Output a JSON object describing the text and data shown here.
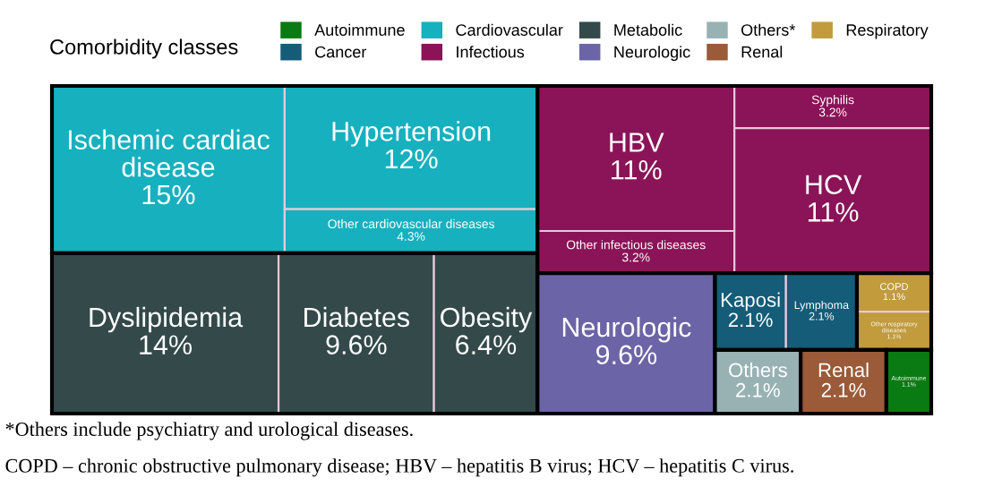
{
  "chart_data": {
    "type": "other",
    "legend_title": "Comorbidity classes",
    "legend": "top",
    "categories": [
      "Ischemic cardiac disease",
      "Hypertension",
      "Other cardiovascular diseases",
      "Dyslipidemia",
      "Diabetes",
      "Obesity",
      "HBV",
      "Other infectious diseases",
      "Syphilis",
      "HCV",
      "Neurologic",
      "Kaposi",
      "Lymphoma",
      "COPD",
      "Other respiratory diseases",
      "Others",
      "Renal",
      "Autoimmune"
    ],
    "series": [
      {
        "name": "Autoimmune",
        "color": "#0a7a12",
        "values": [
          null,
          null,
          null,
          null,
          null,
          null,
          null,
          null,
          null,
          null,
          null,
          null,
          null,
          null,
          null,
          null,
          null,
          1.1
        ],
        "value_labels": [
          null,
          null,
          null,
          null,
          null,
          null,
          null,
          null,
          null,
          null,
          null,
          null,
          null,
          null,
          null,
          null,
          null,
          "1.1%"
        ]
      },
      {
        "name": "Cancer",
        "color": "#145c78",
        "values": [
          null,
          null,
          null,
          null,
          null,
          null,
          null,
          null,
          null,
          null,
          null,
          2.1,
          2.1,
          null,
          null,
          null,
          null,
          null
        ],
        "value_labels": [
          null,
          null,
          null,
          null,
          null,
          null,
          null,
          null,
          null,
          null,
          null,
          "2.1%",
          "2.1%",
          null,
          null,
          null,
          null,
          null
        ]
      },
      {
        "name": "Cardiovascular",
        "color": "#17b0bf",
        "values": [
          15,
          12,
          4.3,
          null,
          null,
          null,
          null,
          null,
          null,
          null,
          null,
          null,
          null,
          null,
          null,
          null,
          null,
          null
        ],
        "value_labels": [
          "15%",
          "12%",
          "4.3%",
          null,
          null,
          null,
          null,
          null,
          null,
          null,
          null,
          null,
          null,
          null,
          null,
          null,
          null,
          null
        ]
      },
      {
        "name": "Infectious",
        "color": "#8a1457",
        "values": [
          null,
          null,
          null,
          null,
          null,
          null,
          11,
          3.2,
          3.2,
          11,
          null,
          null,
          null,
          null,
          null,
          null,
          null,
          null
        ],
        "value_labels": [
          null,
          null,
          null,
          null,
          null,
          null,
          "11%",
          "3.2%",
          "3.2%",
          "11%",
          null,
          null,
          null,
          null,
          null,
          null,
          null,
          null
        ]
      },
      {
        "name": "Metabolic",
        "color": "#33494a",
        "values": [
          null,
          null,
          null,
          14,
          9.6,
          6.4,
          null,
          null,
          null,
          null,
          null,
          null,
          null,
          null,
          null,
          null,
          null,
          null
        ],
        "value_labels": [
          null,
          null,
          null,
          "14%",
          "9.6%",
          "6.4%",
          null,
          null,
          null,
          null,
          null,
          null,
          null,
          null,
          null,
          null,
          null,
          null
        ]
      },
      {
        "name": "Neurologic",
        "color": "#6b64a6",
        "values": [
          null,
          null,
          null,
          null,
          null,
          null,
          null,
          null,
          null,
          null,
          9.6,
          null,
          null,
          null,
          null,
          null,
          null,
          null
        ],
        "value_labels": [
          null,
          null,
          null,
          null,
          null,
          null,
          null,
          null,
          null,
          null,
          "9.6%",
          null,
          null,
          null,
          null,
          null,
          null,
          null
        ]
      },
      {
        "name": "Others*",
        "color": "#98b2b4",
        "values": [
          null,
          null,
          null,
          null,
          null,
          null,
          null,
          null,
          null,
          null,
          null,
          null,
          null,
          null,
          null,
          2.1,
          null,
          null
        ],
        "value_labels": [
          null,
          null,
          null,
          null,
          null,
          null,
          null,
          null,
          null,
          null,
          null,
          null,
          null,
          null,
          null,
          "2.1%",
          null,
          null
        ]
      },
      {
        "name": "Renal",
        "color": "#9b5a38",
        "values": [
          null,
          null,
          null,
          null,
          null,
          null,
          null,
          null,
          null,
          null,
          null,
          null,
          null,
          null,
          null,
          null,
          2.1,
          null
        ],
        "value_labels": [
          null,
          null,
          null,
          null,
          null,
          null,
          null,
          null,
          null,
          null,
          null,
          null,
          null,
          null,
          null,
          null,
          "2.1%",
          null
        ]
      },
      {
        "name": "Respiratory",
        "color": "#c19b3c",
        "values": [
          null,
          null,
          null,
          null,
          null,
          null,
          null,
          null,
          null,
          null,
          null,
          null,
          null,
          1.1,
          1.1,
          null,
          null,
          null
        ],
        "value_labels": [
          null,
          null,
          null,
          null,
          null,
          null,
          null,
          null,
          null,
          null,
          null,
          null,
          null,
          "1.1%",
          "1.1%",
          null,
          null,
          null
        ]
      }
    ],
    "annotations": [
      "*Others include psychiatry and urological diseases.",
      "COPD – chronic obstructive pulmonary disease; HBV – hepatitis B virus; HCV – hepatitis C virus."
    ]
  }
}
